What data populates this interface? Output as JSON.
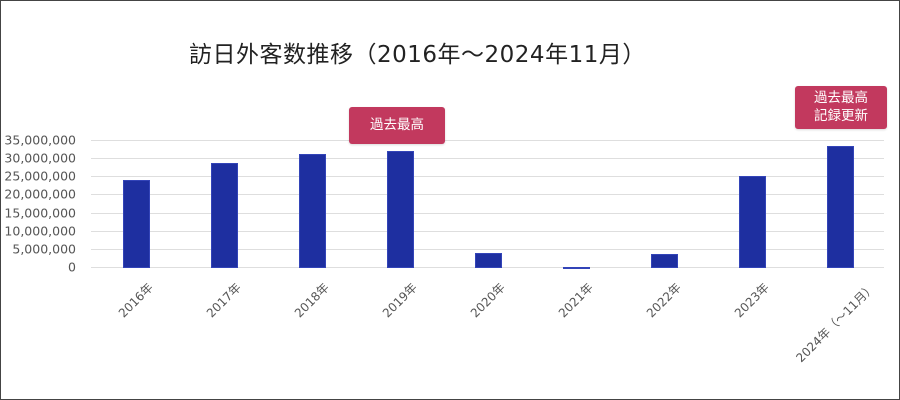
{
  "chart_data": {
    "type": "bar",
    "title": "訪日外客数推移（2016年～2024年11月）",
    "xlabel": "",
    "ylabel": "",
    "ylim": [
      0,
      35000000
    ],
    "yticks": [
      "35,000,000",
      "30,000,000",
      "25,000,000",
      "20,000,000",
      "15,000,000",
      "10,000,000",
      "5,000,000",
      "0"
    ],
    "grid": true,
    "legend": null,
    "categories": [
      "2016年",
      "2017年",
      "2018年",
      "2019年",
      "2020年",
      "2021年",
      "2022年",
      "2023年",
      "2024年（～11月）"
    ],
    "values": [
      24000000,
      28700000,
      31200000,
      31900000,
      4100000,
      250000,
      3800000,
      25100000,
      33400000
    ],
    "bar_color": "#1e2fa0",
    "annotations": [
      {
        "target": "2019年",
        "text": "過去最高"
      },
      {
        "target": "2024年（～11月）",
        "text": "過去最高\n記録更新"
      }
    ]
  },
  "annotations": {
    "record_2019": "過去最高",
    "record_2024_line1": "過去最高",
    "record_2024_line2": "記録更新"
  },
  "colors": {
    "bar": "#1e2fa0",
    "callout": "#c2395e",
    "grid": "#dedede",
    "text": "#555555"
  }
}
